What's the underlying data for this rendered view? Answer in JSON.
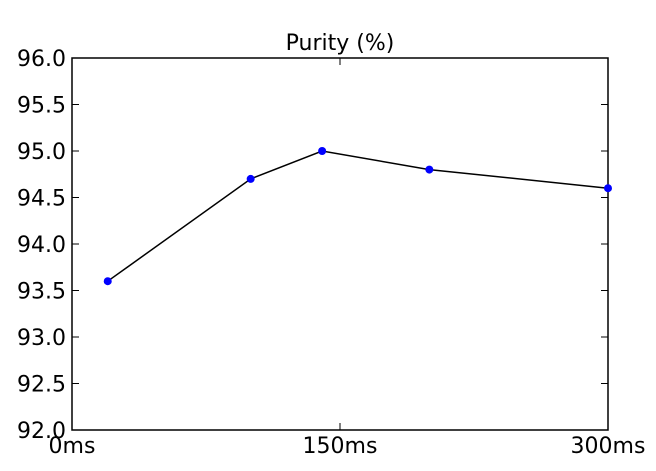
{
  "chart_data": {
    "type": "line",
    "title": "Purity (%)",
    "xlabel": "",
    "ylabel": "",
    "x": [
      20,
      100,
      140,
      200,
      300
    ],
    "series": [
      {
        "values": [
          93.6,
          94.7,
          95.0,
          94.8,
          94.6
        ]
      }
    ],
    "xlim": [
      0,
      300
    ],
    "ylim": [
      92.0,
      96.0
    ],
    "x_ticks": [
      {
        "value": 0,
        "label": "0ms"
      },
      {
        "value": 150,
        "label": "150ms"
      },
      {
        "value": 300,
        "label": "300ms"
      }
    ],
    "y_ticks": [
      {
        "value": 92.0,
        "label": "92.0"
      },
      {
        "value": 92.5,
        "label": "92.5"
      },
      {
        "value": 93.0,
        "label": "93.0"
      },
      {
        "value": 93.5,
        "label": "93.5"
      },
      {
        "value": 94.0,
        "label": "94.0"
      },
      {
        "value": 94.5,
        "label": "94.5"
      },
      {
        "value": 95.0,
        "label": "95.0"
      },
      {
        "value": 95.5,
        "label": "95.5"
      },
      {
        "value": 96.0,
        "label": "96.0"
      }
    ],
    "grid": false,
    "legend": "none",
    "colors": {
      "line": "#000000",
      "marker": "#0000ff"
    }
  }
}
